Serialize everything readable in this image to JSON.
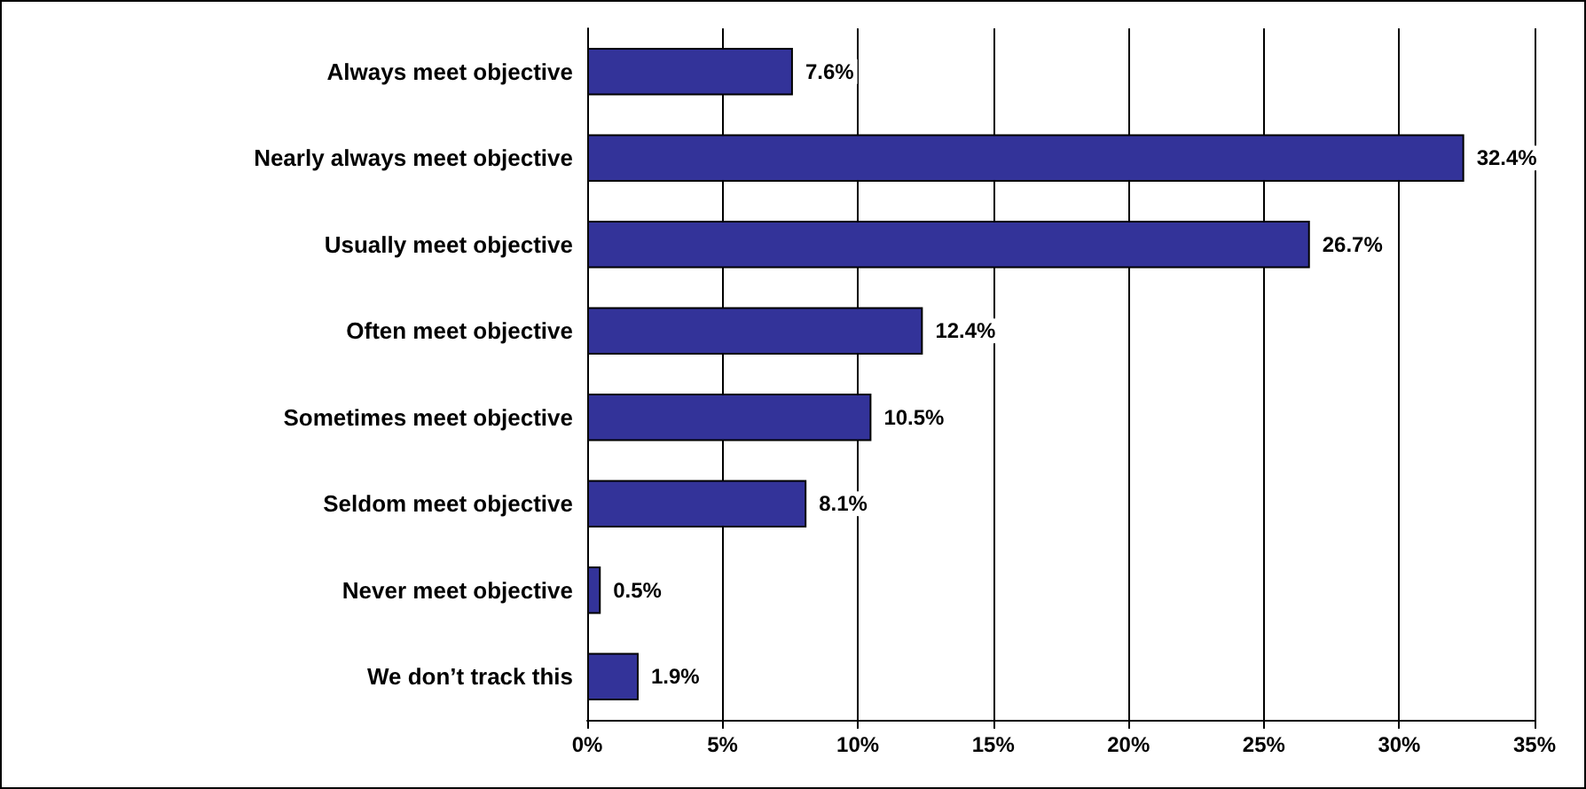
{
  "chart_data": {
    "type": "bar",
    "orientation": "horizontal",
    "categories": [
      "Always meet objective",
      "Nearly always meet objective",
      "Usually meet objective",
      "Often meet objective",
      "Sometimes meet objective",
      "Seldom meet objective",
      "Never meet objective",
      "We don’t track this"
    ],
    "values": [
      7.6,
      32.4,
      26.7,
      12.4,
      10.5,
      8.1,
      0.5,
      1.9
    ],
    "value_labels": [
      "7.6%",
      "32.4%",
      "26.7%",
      "12.4%",
      "10.5%",
      "8.1%",
      "0.5%",
      "1.9%"
    ],
    "color": "#333399",
    "xlim": [
      0,
      35
    ],
    "xticks": [
      {
        "value": 0,
        "label": "0%"
      },
      {
        "value": 5,
        "label": "5%"
      },
      {
        "value": 10,
        "label": "10%"
      },
      {
        "value": 15,
        "label": "15%"
      },
      {
        "value": 20,
        "label": "20%"
      },
      {
        "value": 25,
        "label": "25%"
      },
      {
        "value": 30,
        "label": "30%"
      },
      {
        "value": 35,
        "label": "35%"
      }
    ],
    "grid": "x"
  }
}
